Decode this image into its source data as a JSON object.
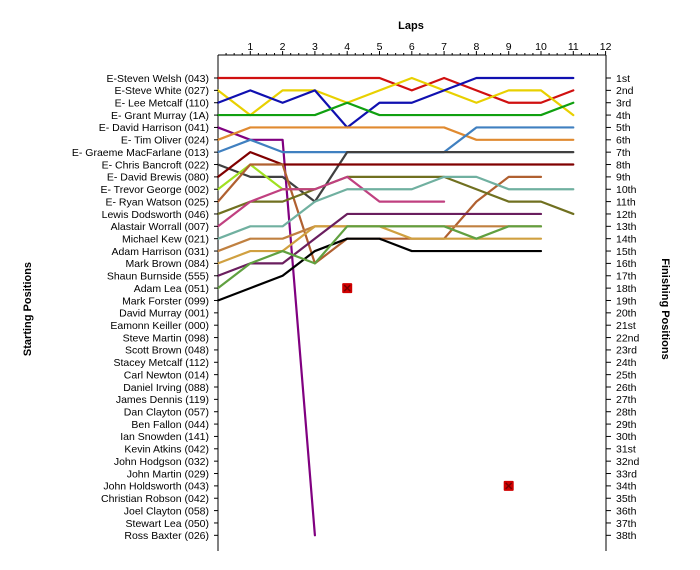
{
  "chart_data": {
    "type": "line",
    "title": "Laps",
    "ylabel_left": "Starting Positions",
    "ylabel_right": "Finishing Positions",
    "laps": [
      "1",
      "2",
      "3",
      "4",
      "5",
      "6",
      "7",
      "8",
      "9",
      "10",
      "11",
      "12"
    ],
    "starting_labels": [
      "E-Steven Welsh (043)",
      "E-Steve White (027)",
      "E- Lee Metcalf (110)",
      "E- Grant Murray (1A)",
      "E- David Harrison (041)",
      "E- Tim Oliver (024)",
      "E- Graeme MacFarlane (013)",
      "E- Chris Bancroft (022)",
      "E- David Brewis (080)",
      "E- Trevor George (002)",
      "E- Ryan Watson (025)",
      "Lewis Dodsworth (046)",
      "Alastair Worrall (007)",
      "Michael Kew (021)",
      "Adam Harrison (031)",
      "Mark Brown (084)",
      "Shaun Burnside (555)",
      "Adam Lea (051)",
      "Mark Forster (099)",
      "David Murray (001)",
      "Eamonn Keiller (000)",
      "Steve Martin (098)",
      "Scott Brown (048)",
      "Stacey Metcalf (112)",
      "Carl Newton (014)",
      "Daniel Irving (088)",
      "James Dennis (119)",
      "Dan Clayton (057)",
      "Ben Fallon (044)",
      "Ian Snowden (141)",
      "Kevin Atkins (042)",
      "John Hodgson (032)",
      "John Martin (029)",
      "John Holdsworth (043)",
      "Christian Robson (042)",
      "Joel Clayton (058)",
      "Stewart Lea (050)",
      "Ross Baxter (026)"
    ],
    "finishing_labels": [
      "1st",
      "2nd",
      "3rd",
      "4th",
      "5th",
      "6th",
      "7th",
      "8th",
      "9th",
      "10th",
      "11th",
      "12th",
      "13th",
      "14th",
      "15th",
      "16th",
      "17th",
      "18th",
      "19th",
      "20th",
      "21st",
      "22nd",
      "23rd",
      "24th",
      "25th",
      "26th",
      "27th",
      "28th",
      "29th",
      "30th",
      "31st",
      "32nd",
      "33rd",
      "34th",
      "35th",
      "36th",
      "37th",
      "38th"
    ],
    "series": [
      {
        "color": "#d01010",
        "positions": [
          1,
          1,
          1,
          1,
          1,
          1,
          2,
          1,
          2,
          3,
          3,
          2
        ]
      },
      {
        "color": "#e8d000",
        "positions": [
          2,
          4,
          2,
          2,
          3,
          2,
          1,
          2,
          3,
          2,
          2,
          4
        ]
      },
      {
        "color": "#1010b0",
        "positions": [
          3,
          2,
          3,
          2,
          5,
          3,
          3,
          2,
          1,
          1,
          1,
          1
        ]
      },
      {
        "color": "#10a010",
        "positions": [
          4,
          4,
          4,
          4,
          3,
          4,
          4,
          4,
          4,
          4,
          4,
          3
        ]
      },
      {
        "color": "#800080",
        "positions": [
          5,
          6,
          6,
          38
        ]
      },
      {
        "color": "#e08a30",
        "positions": [
          6,
          5,
          5,
          5,
          5,
          5,
          5,
          5,
          6,
          6,
          6,
          6
        ]
      },
      {
        "color": "#4080c0",
        "positions": [
          7,
          6,
          7,
          7,
          7,
          7,
          7,
          7,
          5,
          5,
          5,
          5
        ]
      },
      {
        "color": "#404040",
        "positions": [
          8,
          9,
          9,
          11,
          7,
          7,
          7,
          7,
          7,
          7,
          7,
          7
        ]
      },
      {
        "color": "#800000",
        "positions": [
          9,
          7,
          8,
          8,
          8,
          8,
          8,
          8,
          8,
          8,
          8,
          8
        ]
      },
      {
        "color": "#a0e020",
        "positions": [
          10,
          8,
          10,
          10
        ]
      },
      {
        "color": "#b06030",
        "positions": [
          11,
          8,
          8,
          16,
          14,
          14,
          14,
          14,
          11,
          9,
          9
        ]
      },
      {
        "color": "#707020",
        "positions": [
          12,
          11,
          11,
          10,
          9,
          9,
          9,
          9,
          10,
          11,
          11,
          12
        ]
      },
      {
        "color": "#c04080",
        "positions": [
          13,
          11,
          10,
          10,
          9,
          11,
          11,
          11
        ]
      },
      {
        "color": "#70b0a0",
        "positions": [
          14,
          13,
          13,
          11,
          10,
          10,
          10,
          9,
          9,
          10,
          10,
          10
        ]
      },
      {
        "color": "#c08040",
        "positions": [
          15,
          14,
          14,
          13,
          13,
          13,
          13,
          13,
          13,
          13,
          13
        ]
      },
      {
        "color": "#d0a040",
        "positions": [
          16,
          15,
          15,
          13,
          13,
          13,
          14,
          14,
          14,
          14,
          14
        ]
      },
      {
        "color": "#000000",
        "positions": [
          19,
          18,
          17,
          15,
          14,
          14,
          15,
          15,
          15,
          15,
          15
        ]
      },
      {
        "color": "#6a1e5e",
        "positions": [
          17,
          16,
          16,
          14,
          12,
          12,
          12,
          12,
          12,
          12,
          12
        ]
      },
      {
        "color": "#60a040",
        "positions": [
          18,
          16,
          15,
          16,
          13,
          13,
          13,
          13,
          14,
          13,
          13
        ]
      }
    ],
    "markers": [
      {
        "lap": 4,
        "position": 18
      },
      {
        "lap": 9,
        "position": 34
      }
    ]
  }
}
